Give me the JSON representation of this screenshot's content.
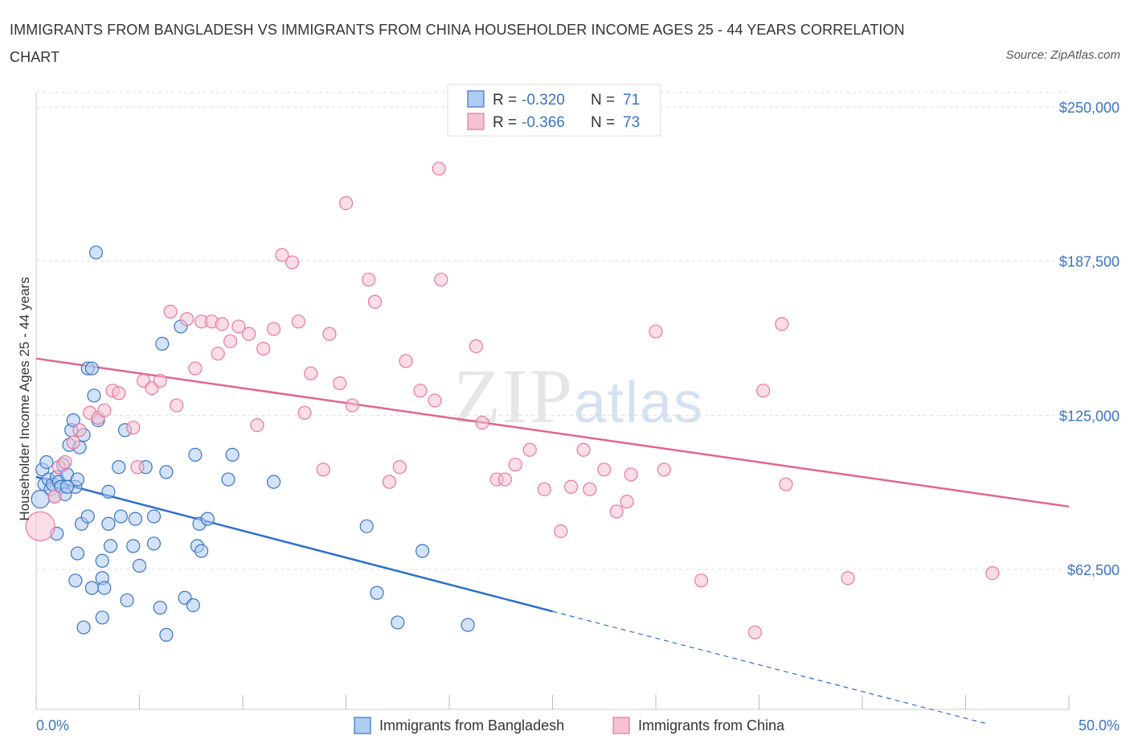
{
  "title": "IMMIGRANTS FROM BANGLADESH VS IMMIGRANTS FROM CHINA HOUSEHOLDER INCOME AGES 25 - 44 YEARS CORRELATION CHART",
  "source": "Source: ZipAtlas.com",
  "watermark": "ZIPatlas",
  "colors": {
    "blue": "#3a74c4",
    "blue_fill": "#aecbf2",
    "blue_line": "#2c6fd1",
    "pink": "#e8799c",
    "pink_fill": "#f6c1d2",
    "pink_line": "#e0668f",
    "grid": "#dddddd",
    "tick_text": "#3a74c4"
  },
  "legend": {
    "rows": [
      {
        "r_label": "R =",
        "r_value": "-0.320",
        "n_label": "N =",
        "n_value": "71"
      },
      {
        "r_label": "R =",
        "r_value": "-0.366",
        "n_label": "N =",
        "n_value": "73"
      }
    ]
  },
  "chart_data": {
    "type": "scatter",
    "title": "IMMIGRANTS FROM BANGLADESH VS IMMIGRANTS FROM CHINA HOUSEHOLDER INCOME AGES 25 - 44 YEARS CORRELATION CHART",
    "xlabel": "",
    "ylabel": "Householder Income Ages 25 - 44 years",
    "xlim": [
      0,
      50
    ],
    "ylim": [
      0,
      255000
    ],
    "x_tick_labels": [
      "0.0%",
      "50.0%"
    ],
    "y_ticks": [
      62500,
      125000,
      187500,
      250000
    ],
    "y_tick_labels": [
      "$62,500",
      "$125,000",
      "$187,500",
      "$250,000"
    ],
    "grid": true,
    "legend_position": "top-center",
    "series": [
      {
        "name": "Immigrants from Bangladesh",
        "color": "blue",
        "r": -0.32,
        "n": 71,
        "trend": {
          "x0": 0,
          "y0": 100000,
          "x1": 25,
          "y1": 45500,
          "dash_to_x": 46,
          "dash_to_y": 0
        },
        "points": [
          [
            0.3,
            103000
          ],
          [
            0.4,
            97000
          ],
          [
            0.5,
            106000
          ],
          [
            0.6,
            99000
          ],
          [
            0.7,
            95000
          ],
          [
            0.8,
            97000
          ],
          [
            0.9,
            92000
          ],
          [
            1.0,
            100000
          ],
          [
            1.1,
            98000
          ],
          [
            1.2,
            96000
          ],
          [
            1.3,
            105000
          ],
          [
            1.4,
            93000
          ],
          [
            1.5,
            101000
          ],
          [
            1.6,
            113000
          ],
          [
            1.7,
            119000
          ],
          [
            1.8,
            123000
          ],
          [
            1.9,
            96000
          ],
          [
            2.0,
            99000
          ],
          [
            2.1,
            112000
          ],
          [
            2.3,
            117000
          ],
          [
            2.5,
            144000
          ],
          [
            2.7,
            144000
          ],
          [
            2.8,
            133000
          ],
          [
            2.9,
            191000
          ],
          [
            3.0,
            123000
          ],
          [
            1.0,
            77000
          ],
          [
            2.0,
            69000
          ],
          [
            2.2,
            81000
          ],
          [
            2.5,
            84000
          ],
          [
            3.5,
            94000
          ],
          [
            3.5,
            81000
          ],
          [
            2.3,
            39000
          ],
          [
            1.9,
            58000
          ],
          [
            2.7,
            55000
          ],
          [
            3.2,
            59000
          ],
          [
            3.3,
            55000
          ],
          [
            3.2,
            43000
          ],
          [
            3.2,
            66000
          ],
          [
            3.6,
            72000
          ],
          [
            4.0,
            104000
          ],
          [
            4.1,
            84000
          ],
          [
            4.3,
            119000
          ],
          [
            4.4,
            50000
          ],
          [
            4.7,
            72000
          ],
          [
            4.8,
            83000
          ],
          [
            5.0,
            64000
          ],
          [
            5.3,
            104000
          ],
          [
            5.7,
            73000
          ],
          [
            5.7,
            84000
          ],
          [
            6.0,
            47000
          ],
          [
            6.1,
            154000
          ],
          [
            6.3,
            102000
          ],
          [
            6.3,
            36000
          ],
          [
            7.0,
            161000
          ],
          [
            7.2,
            51000
          ],
          [
            7.6,
            48000
          ],
          [
            7.7,
            109000
          ],
          [
            7.8,
            72000
          ],
          [
            7.9,
            81000
          ],
          [
            8.0,
            70000
          ],
          [
            8.3,
            83000
          ],
          [
            9.3,
            99000
          ],
          [
            9.5,
            109000
          ],
          [
            11.5,
            98000
          ],
          [
            16.0,
            80000
          ],
          [
            16.5,
            53000
          ],
          [
            17.5,
            41000
          ],
          [
            18.7,
            70000
          ],
          [
            20.9,
            40000
          ],
          [
            0.2,
            91000
          ],
          [
            1.5,
            96000
          ]
        ]
      },
      {
        "name": "Immigrants from China",
        "color": "pink",
        "r": -0.366,
        "n": 73,
        "trend": {
          "x0": 0,
          "y0": 148000,
          "x1": 50,
          "y1": 88000
        },
        "points": [
          [
            0.2,
            80000
          ],
          [
            0.9,
            92000
          ],
          [
            1.1,
            104000
          ],
          [
            1.4,
            106000
          ],
          [
            1.8,
            114000
          ],
          [
            2.1,
            119000
          ],
          [
            2.6,
            126000
          ],
          [
            3.0,
            124000
          ],
          [
            3.3,
            127000
          ],
          [
            3.7,
            135000
          ],
          [
            4.0,
            134000
          ],
          [
            4.7,
            120000
          ],
          [
            4.9,
            104000
          ],
          [
            5.2,
            139000
          ],
          [
            5.6,
            136000
          ],
          [
            6.0,
            139000
          ],
          [
            6.5,
            167000
          ],
          [
            6.8,
            129000
          ],
          [
            7.3,
            164000
          ],
          [
            7.7,
            144000
          ],
          [
            8.0,
            163000
          ],
          [
            8.5,
            163000
          ],
          [
            8.8,
            150000
          ],
          [
            9.0,
            162000
          ],
          [
            9.4,
            155000
          ],
          [
            9.8,
            161000
          ],
          [
            10.3,
            158000
          ],
          [
            10.7,
            121000
          ],
          [
            11.0,
            152000
          ],
          [
            11.5,
            160000
          ],
          [
            11.9,
            190000
          ],
          [
            12.4,
            187000
          ],
          [
            12.7,
            163000
          ],
          [
            13.0,
            126000
          ],
          [
            13.3,
            142000
          ],
          [
            13.9,
            103000
          ],
          [
            14.2,
            158000
          ],
          [
            14.7,
            138000
          ],
          [
            15.0,
            211000
          ],
          [
            15.3,
            129000
          ],
          [
            16.1,
            180000
          ],
          [
            16.4,
            171000
          ],
          [
            17.1,
            98000
          ],
          [
            17.6,
            104000
          ],
          [
            17.9,
            147000
          ],
          [
            18.6,
            135000
          ],
          [
            19.3,
            131000
          ],
          [
            19.5,
            225000
          ],
          [
            19.6,
            180000
          ],
          [
            21.3,
            153000
          ],
          [
            21.6,
            122000
          ],
          [
            22.3,
            99000
          ],
          [
            22.7,
            99000
          ],
          [
            23.2,
            105000
          ],
          [
            23.9,
            111000
          ],
          [
            24.6,
            95000
          ],
          [
            25.4,
            78000
          ],
          [
            25.9,
            96000
          ],
          [
            26.5,
            111000
          ],
          [
            26.8,
            95000
          ],
          [
            27.5,
            103000
          ],
          [
            28.1,
            86000
          ],
          [
            28.6,
            90000
          ],
          [
            28.8,
            101000
          ],
          [
            30.0,
            159000
          ],
          [
            30.4,
            103000
          ],
          [
            32.2,
            58000
          ],
          [
            34.8,
            37000
          ],
          [
            35.2,
            135000
          ],
          [
            36.1,
            162000
          ],
          [
            36.3,
            97000
          ],
          [
            39.3,
            59000
          ],
          [
            46.3,
            61000
          ]
        ]
      }
    ]
  }
}
